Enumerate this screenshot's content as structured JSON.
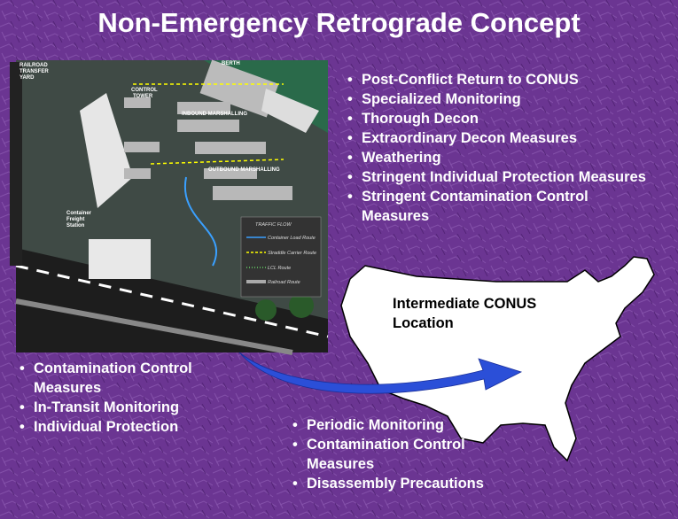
{
  "title": "Non-Emergency Retrograde Concept",
  "illustration": {
    "labels": [
      "RAILROAD",
      "TRANSFER",
      "YARD",
      "BERTH",
      "CONTROL",
      "TOWER",
      "INBOUND MARSHALLING",
      "OUTBOUND MARSHALLING",
      "Container",
      "Freight",
      "Station"
    ],
    "legend": {
      "title": "TRAFFIC FLOW",
      "items": [
        "Container Load Route",
        "Straddle Carrier Route",
        "LCL Route",
        "Railroad Route"
      ]
    }
  },
  "top_bullets": [
    "Post-Conflict  Return to CONUS",
    "Specialized Monitoring",
    "Thorough Decon",
    "Extraordinary Decon Measures",
    "Weathering",
    "Stringent Individual Protection Measures",
    "Stringent Contamination Control Measures"
  ],
  "map_label": "Intermediate CONUS Location",
  "left_bullets": [
    "Contamination Control Measures",
    "In-Transit Monitoring",
    "Individual Protection"
  ],
  "bottom_bullets": [
    "Periodic Monitoring",
    "Contamination Control Measures",
    "Disassembly Precautions"
  ]
}
